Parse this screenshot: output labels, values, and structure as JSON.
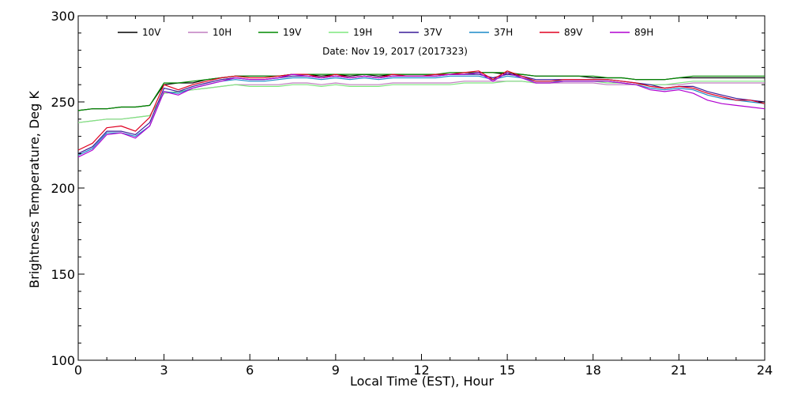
{
  "chart_data": {
    "type": "line",
    "subtitle": "Date: Nov 19, 2017 (2017323)",
    "xlabel": "Local Time (EST), Hour",
    "ylabel": "Brightness Temperature, Deg K",
    "xlim": [
      0,
      24
    ],
    "ylim": [
      100,
      300
    ],
    "x_ticks": [
      "0",
      "3",
      "6",
      "9",
      "12",
      "15",
      "18",
      "21",
      "24"
    ],
    "y_ticks": [
      "100",
      "150",
      "200",
      "250",
      "300"
    ],
    "grid": false,
    "legend_position": "top",
    "x": [
      0,
      0.5,
      1,
      1.5,
      2,
      2.5,
      3,
      3.5,
      4,
      4.5,
      5,
      5.5,
      6,
      6.5,
      7,
      7.5,
      8,
      8.5,
      9,
      9.5,
      10,
      10.5,
      11,
      11.5,
      12,
      12.5,
      13,
      13.5,
      14,
      14.5,
      15,
      15.5,
      16,
      16.5,
      17,
      17.5,
      18,
      18.5,
      19,
      19.5,
      20,
      20.5,
      21,
      21.5,
      22,
      22.5,
      23,
      23.5,
      24
    ],
    "series": [
      {
        "name": "10V",
        "color": "#000000",
        "values": [
          245,
          246,
          246,
          247,
          247,
          248,
          260,
          261,
          261,
          263,
          264,
          265,
          265,
          265,
          265,
          266,
          266,
          265,
          266,
          265,
          266,
          265,
          266,
          266,
          266,
          266,
          266,
          266,
          267,
          267,
          266,
          266,
          265,
          265,
          265,
          265,
          264,
          264,
          264,
          263,
          263,
          263,
          264,
          264,
          264,
          264,
          264,
          264,
          264
        ]
      },
      {
        "name": "10H",
        "color": "#c07ec0",
        "values": [
          238,
          239,
          240,
          240,
          241,
          242,
          255,
          256,
          257,
          258,
          259,
          260,
          260,
          260,
          260,
          261,
          261,
          260,
          261,
          260,
          260,
          260,
          261,
          261,
          261,
          261,
          261,
          262,
          262,
          262,
          262,
          262,
          261,
          261,
          261,
          261,
          261,
          260,
          260,
          260,
          260,
          260,
          260,
          261,
          261,
          261,
          261,
          261,
          261
        ]
      },
      {
        "name": "19V",
        "color": "#008a00",
        "values": [
          245,
          246,
          246,
          247,
          247,
          248,
          261,
          261,
          262,
          263,
          264,
          265,
          265,
          265,
          265,
          266,
          266,
          266,
          266,
          266,
          266,
          266,
          266,
          266,
          266,
          266,
          267,
          267,
          267,
          267,
          267,
          266,
          265,
          265,
          265,
          265,
          265,
          264,
          264,
          263,
          263,
          263,
          264,
          265,
          265,
          265,
          265,
          265,
          265
        ]
      },
      {
        "name": "19H",
        "color": "#7ee87e",
        "values": [
          238,
          239,
          240,
          240,
          241,
          242,
          255,
          256,
          257,
          258,
          259,
          260,
          259,
          259,
          259,
          260,
          260,
          259,
          260,
          259,
          259,
          259,
          260,
          260,
          260,
          260,
          260,
          261,
          261,
          261,
          262,
          262,
          261,
          261,
          262,
          262,
          262,
          261,
          261,
          260,
          260,
          260,
          261,
          262,
          262,
          262,
          262,
          262,
          262
        ]
      },
      {
        "name": "37V",
        "color": "#3a1c98",
        "values": [
          220,
          224,
          233,
          233,
          231,
          238,
          258,
          256,
          259,
          261,
          263,
          264,
          263,
          263,
          264,
          265,
          265,
          264,
          265,
          264,
          265,
          264,
          265,
          265,
          265,
          265,
          266,
          266,
          266,
          264,
          266,
          265,
          263,
          263,
          263,
          263,
          263,
          263,
          262,
          261,
          260,
          258,
          259,
          259,
          256,
          254,
          252,
          251,
          250
        ]
      },
      {
        "name": "37H",
        "color": "#1a8ac8",
        "values": [
          219,
          223,
          232,
          232,
          230,
          236,
          256,
          255,
          258,
          260,
          262,
          263,
          262,
          262,
          263,
          264,
          264,
          263,
          264,
          263,
          264,
          263,
          264,
          264,
          264,
          264,
          265,
          265,
          265,
          263,
          265,
          264,
          262,
          262,
          262,
          262,
          262,
          262,
          261,
          260,
          258,
          257,
          258,
          257,
          254,
          252,
          251,
          250,
          249
        ]
      },
      {
        "name": "89V",
        "color": "#e00020",
        "values": [
          222,
          226,
          235,
          236,
          233,
          241,
          260,
          257,
          260,
          262,
          264,
          265,
          264,
          264,
          265,
          266,
          266,
          264,
          266,
          264,
          265,
          264,
          266,
          265,
          265,
          266,
          266,
          267,
          268,
          263,
          268,
          265,
          262,
          262,
          263,
          263,
          263,
          263,
          262,
          261,
          259,
          258,
          259,
          258,
          255,
          253,
          251,
          251,
          249
        ]
      },
      {
        "name": "89H",
        "color": "#b000d0",
        "values": [
          218,
          222,
          231,
          232,
          229,
          236,
          256,
          254,
          258,
          260,
          262,
          264,
          263,
          263,
          264,
          266,
          265,
          264,
          265,
          264,
          265,
          264,
          265,
          265,
          265,
          265,
          266,
          266,
          267,
          262,
          267,
          264,
          261,
          261,
          262,
          262,
          262,
          262,
          261,
          260,
          257,
          256,
          257,
          255,
          251,
          249,
          248,
          247,
          246
        ]
      }
    ]
  }
}
